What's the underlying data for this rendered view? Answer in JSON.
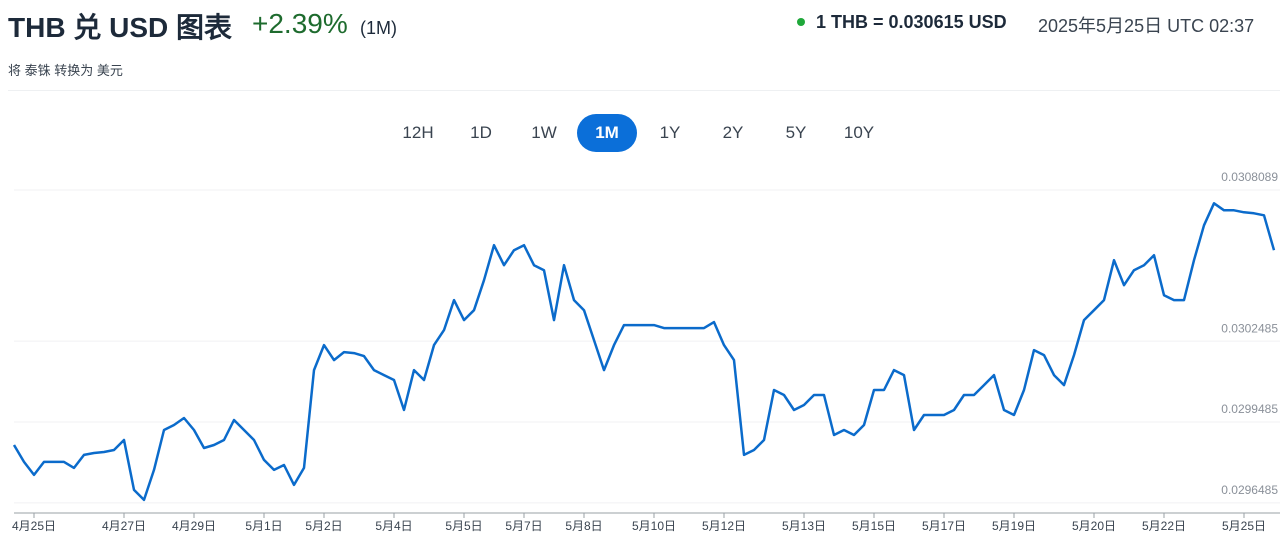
{
  "header": {
    "title": "THB 兑 USD 图表",
    "change": "+2.39%",
    "period": "(1M)",
    "rate": "1 THB = 0.030615 USD",
    "timestamp": "2025年5月25日 UTC 02:37",
    "subtitle": "将 泰铢 转换为 美元"
  },
  "range_buttons": [
    "12H",
    "1D",
    "1W",
    "1M",
    "1Y",
    "2Y",
    "5Y",
    "10Y"
  ],
  "active_range": 3,
  "chart_data": {
    "type": "line",
    "color": "#0b6bcb",
    "grid": true,
    "ylim": [
      0.029611,
      0.0308089
    ],
    "yticks": [
      0.0296485,
      0.0299485,
      0.0302485,
      0.0308089
    ],
    "categories": [
      null,
      null,
      "4月25日",
      null,
      null,
      null,
      null,
      null,
      null,
      null,
      null,
      "4月27日",
      null,
      null,
      null,
      null,
      null,
      null,
      "4月29日",
      null,
      null,
      null,
      null,
      null,
      null,
      "5月1日",
      null,
      null,
      null,
      null,
      null,
      "5月2日",
      null,
      null,
      null,
      null,
      null,
      null,
      "5月4日",
      null,
      null,
      null,
      null,
      null,
      null,
      "5月5日",
      null,
      null,
      null,
      null,
      null,
      "5月7日",
      null,
      null,
      null,
      null,
      null,
      "5月8日",
      null,
      null,
      null,
      null,
      null,
      null,
      "5月10日",
      null,
      null,
      null,
      null,
      null,
      null,
      "5月12日",
      null,
      null,
      null,
      null,
      null,
      null,
      null,
      "5月13日",
      null,
      null,
      null,
      null,
      null,
      null,
      "5月15日",
      null,
      null,
      null,
      null,
      null,
      null,
      "5月17日",
      null,
      null,
      null,
      null,
      null,
      null,
      "5月19日",
      null,
      null,
      null,
      null,
      null,
      null,
      null,
      "5月20日",
      null,
      null,
      null,
      null,
      null,
      null,
      "5月22日",
      null,
      null,
      null,
      null,
      null,
      null,
      null,
      "5月25日",
      null,
      null,
      null
    ],
    "values": [
      0.0298633,
      0.0298004,
      0.0297522,
      0.0298004,
      0.0298004,
      0.0298004,
      0.0297781,
      0.0298263,
      0.0298337,
      0.0298374,
      0.0298448,
      0.0298818,
      0.0296966,
      0.0296596,
      0.0297707,
      0.0299189,
      0.0299374,
      0.0299633,
      0.0299189,
      0.0298522,
      0.0298633,
      0.0298818,
      0.0299559,
      0.0299189,
      0.0298818,
      0.0298078,
      0.0297707,
      0.0297892,
      0.0297152,
      0.0297781,
      0.0301411,
      0.0302337,
      0.0301781,
      0.0302078,
      0.0302041,
      0.0301929,
      0.0301411,
      0.0301226,
      0.0301041,
      0.0299929,
      0.0301411,
      0.0301041,
      0.0302337,
      0.0302892,
      0.0304004,
      0.0303263,
      0.0303633,
      0.0304744,
      0.0306041,
      0.03053,
      0.0305855,
      0.0306041,
      0.03053,
      0.0305115,
      0.0303263,
      0.03053,
      0.0304004,
      0.0303633,
      0.0302522,
      0.0301411,
      0.0302337,
      0.0303078,
      0.0303078,
      0.0303078,
      0.0303078,
      0.0302966,
      0.0302966,
      0.0302966,
      0.0302966,
      0.0302966,
      0.0303189,
      0.0302337,
      0.0301781,
      0.0298263,
      0.0298448,
      0.0298818,
      0.030067,
      0.0300485,
      0.0299929,
      0.0300115,
      0.0300485,
      0.0300485,
      0.0299004,
      0.0299189,
      0.0299004,
      0.0299374,
      0.030067,
      0.030067,
      0.0301411,
      0.0301226,
      0.0299189,
      0.0299744,
      0.0299744,
      0.0299744,
      0.0299929,
      0.0300485,
      0.0300485,
      0.0300855,
      0.0301226,
      0.0299929,
      0.0299744,
      0.030067,
      0.0302152,
      0.0301966,
      0.0301226,
      0.0300855,
      0.0301966,
      0.0303263,
      0.0303633,
      0.0304004,
      0.0305485,
      0.0304559,
      0.0305115,
      0.03053,
      0.030567,
      0.0304189,
      0.0304004,
      0.0304004,
      0.0305485,
      0.0306781,
      0.0307596,
      0.0307337,
      0.0307337,
      0.0307263,
      0.0307226,
      0.0307152,
      0.0305855
    ]
  }
}
